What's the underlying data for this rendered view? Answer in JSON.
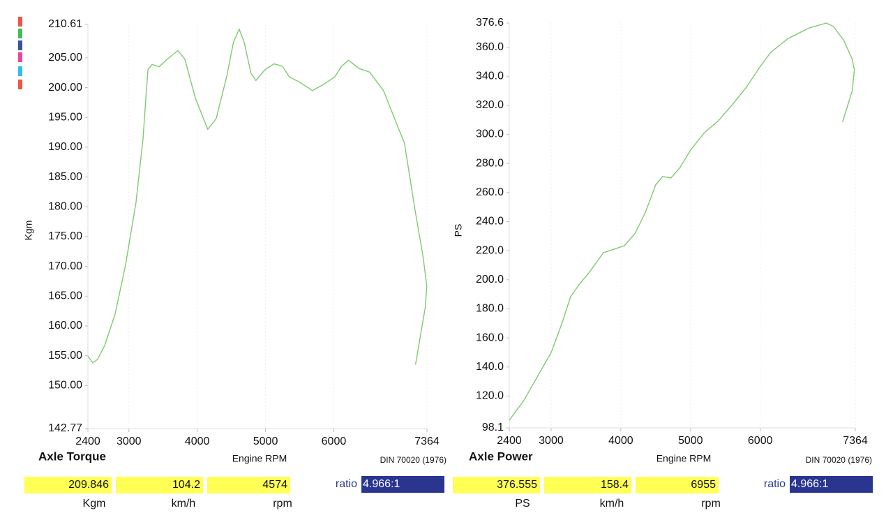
{
  "chart_data": [
    {
      "type": "line",
      "title": "Axle Torque",
      "xlabel": "Engine RPM",
      "ylabel": "Kgm",
      "annotation": "DIN 70020 (1976)",
      "xlim": [
        2400,
        7364
      ],
      "xticks": [
        2400,
        3000,
        4000,
        5000,
        6000,
        7364
      ],
      "ylim": [
        142.77,
        210.61
      ],
      "yticks": [
        142.77,
        {
          "value": 150,
          "label": "150.00"
        },
        {
          "value": 155,
          "label": "155.00"
        },
        {
          "value": 160,
          "label": "160.00"
        },
        {
          "value": 165,
          "label": "165.00"
        },
        {
          "value": 170,
          "label": "170.00"
        },
        {
          "value": 175,
          "label": "175.00"
        },
        {
          "value": 180,
          "label": "180.00"
        },
        {
          "value": 185,
          "label": "185.00"
        },
        {
          "value": 190,
          "label": "190.00"
        },
        {
          "value": 195,
          "label": "195.00"
        },
        {
          "value": 200,
          "label": "200.00"
        },
        {
          "value": 205,
          "label": "205.00"
        },
        210.61
      ],
      "grid": true,
      "x": [
        2400,
        2471,
        2543,
        2645,
        2798,
        2951,
        3104,
        3206,
        3278,
        3339,
        3441,
        3564,
        3717,
        3819,
        3972,
        4155,
        4278,
        4431,
        4533,
        4615,
        4686,
        4788,
        4860,
        4992,
        5125,
        5248,
        5350,
        5503,
        5687,
        5860,
        6013,
        6115,
        6217,
        6370,
        6524,
        6728,
        6932,
        7034,
        7187,
        7310,
        7361,
        7340,
        7197
      ],
      "series": [
        {
          "color": "#7ccc6c",
          "values": [
            154.95,
            153.8,
            154.4,
            156.7,
            162.0,
            170.2,
            180.7,
            191.3,
            203.0,
            203.9,
            203.5,
            204.8,
            206.2,
            204.8,
            198.3,
            193.0,
            194.8,
            201.8,
            207.7,
            209.8,
            207.7,
            202.4,
            201.2,
            203.0,
            204.0,
            203.6,
            201.8,
            200.9,
            199.5,
            200.6,
            201.8,
            203.6,
            204.6,
            203.2,
            202.6,
            199.5,
            193.6,
            190.7,
            179.6,
            171.4,
            166.7,
            163.2,
            153.5
          ]
        }
      ]
    },
    {
      "type": "line",
      "title": "Axle Power",
      "xlabel": "Engine RPM",
      "ylabel": "PS",
      "annotation": "DIN 70020 (1976)",
      "xlim": [
        2400,
        7364
      ],
      "xticks": [
        2400,
        3000,
        4000,
        5000,
        6000,
        7364
      ],
      "ylim": [
        98.1,
        376.6
      ],
      "yticks": [
        98.1,
        {
          "value": 120,
          "label": "120.0"
        },
        {
          "value": 140,
          "label": "140.0"
        },
        {
          "value": 160,
          "label": "160.0"
        },
        {
          "value": 180,
          "label": "180.0"
        },
        {
          "value": 200,
          "label": "200.0"
        },
        {
          "value": 220,
          "label": "220.0"
        },
        {
          "value": 240,
          "label": "240.0"
        },
        {
          "value": 260,
          "label": "260.0"
        },
        {
          "value": 280,
          "label": "280.0"
        },
        {
          "value": 300,
          "label": "300.0"
        },
        {
          "value": 320,
          "label": "320.0"
        },
        {
          "value": 340,
          "label": "340.0"
        },
        {
          "value": 360,
          "label": "360.0"
        },
        376.6
      ],
      "grid": true,
      "x": [
        2400,
        2600,
        2800,
        3000,
        3150,
        3280,
        3400,
        3550,
        3750,
        3900,
        4050,
        4200,
        4350,
        4500,
        4600,
        4720,
        4850,
        5000,
        5200,
        5400,
        5600,
        5800,
        6000,
        6150,
        6400,
        6700,
        6950,
        7050,
        7200,
        7320,
        7350,
        7320,
        7180
      ],
      "series": [
        {
          "color": "#7ccc6c",
          "values": [
            103.4,
            116.3,
            133.1,
            149.9,
            169.2,
            188.4,
            196.5,
            205.2,
            218.6,
            221.0,
            223.4,
            231.6,
            246.0,
            265.2,
            271.0,
            270.0,
            277.2,
            289.2,
            301.2,
            309.4,
            320.4,
            332.4,
            346.8,
            356.4,
            366.0,
            373.2,
            376.6,
            374.2,
            364.6,
            351.6,
            344.4,
            330.0,
            308.4
          ]
        }
      ]
    }
  ],
  "readouts": [
    {
      "fields": [
        {
          "value": 209.846,
          "unit": "Kgm"
        },
        {
          "value": 104.2,
          "unit": "km/h"
        },
        {
          "value": 4574,
          "unit": "rpm"
        }
      ],
      "ratio_label": "ratio",
      "ratio": "4.966:1"
    },
    {
      "fields": [
        {
          "value": 376.555,
          "unit": "PS"
        },
        {
          "value": 158.4,
          "unit": "km/h"
        },
        {
          "value": 6955,
          "unit": "rpm"
        }
      ],
      "ratio_label": "ratio",
      "ratio": "4.966:1"
    }
  ]
}
